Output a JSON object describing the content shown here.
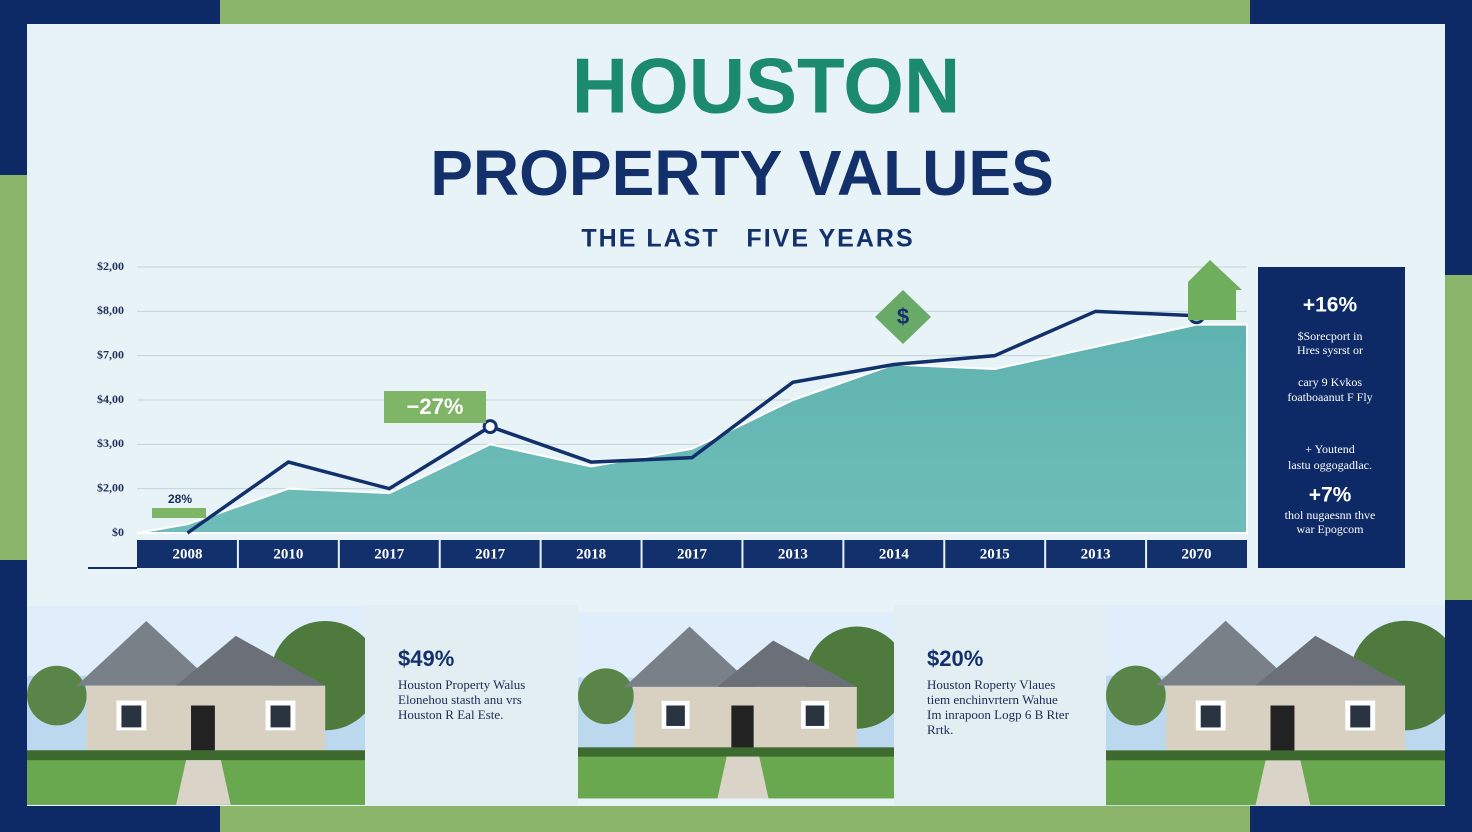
{
  "chart_data": {
    "type": "area",
    "title": "HOUSTON",
    "subtitle": "PROPERTY  VALUES",
    "caption": "THE LAST   FIVE YEARS",
    "categories": [
      "2008",
      "2010",
      "2017",
      "2017",
      "2018",
      "2017",
      "2013",
      "2014",
      "2015",
      "2013",
      "2070"
    ],
    "series": [
      {
        "color": "#12306b",
        "values": [
          0,
          1.6,
          1.0,
          2.4,
          1.6,
          1.7,
          3.4,
          3.8,
          4.0,
          5.0,
          4.9
        ]
      },
      {
        "color": "#5fb3b0",
        "values": [
          0.2,
          1.0,
          0.9,
          2.0,
          1.5,
          1.9,
          3.0,
          3.8,
          3.7,
          4.2,
          4.7
        ]
      }
    ],
    "ylim": [
      0,
      6
    ],
    "yticks": [
      {
        "value": 0,
        "label": "$0"
      },
      {
        "value": 1,
        "label": "$2,00"
      },
      {
        "value": 2,
        "label": "$3,00"
      },
      {
        "value": 3,
        "label": "$4,00"
      },
      {
        "value": 4,
        "label": "$7,00"
      },
      {
        "value": 5,
        "label": "$8,00"
      },
      {
        "value": 6,
        "label": "$2,00"
      }
    ],
    "grid": true,
    "annotations": [
      "−27%",
      "28%",
      "$"
    ]
  },
  "side_panel": {
    "lines": [
      "+16%",
      "$Sorecport in",
      "Hres sysrst or",
      "cary 9 Kvkos",
      "foatboaanut F Fly",
      "+ Youtend",
      "lastu oggogadlac.",
      "+7%",
      "thol nugaesnn thve",
      "war Epogcom"
    ]
  },
  "cards": [
    {
      "value": "$49%",
      "lines": [
        "Houston Property Walus",
        "Elonehou stasth anu vrs",
        "Houston R Eal Este."
      ]
    },
    {
      "value": "$20%",
      "lines": [
        "Houston Roperty Vlaues",
        "tiem enchinvrtern Wahue",
        "Im inrapoon Logp 6 B Rter",
        "Rrtk."
      ]
    }
  ]
}
